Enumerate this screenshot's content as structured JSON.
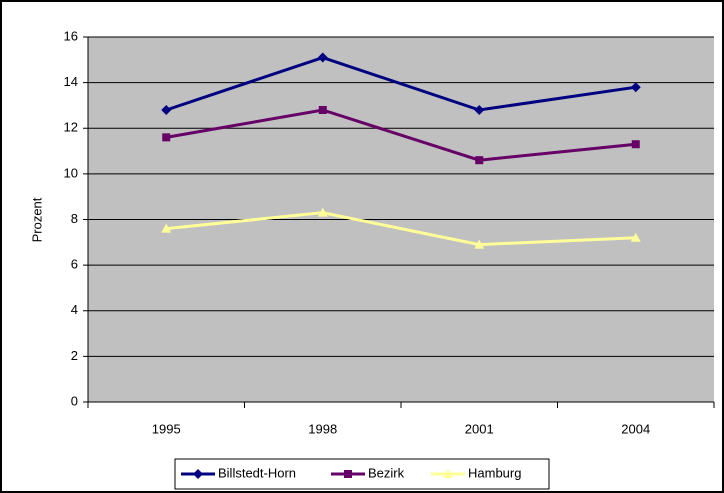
{
  "chart_data": {
    "type": "line",
    "ylabel": "Prozent",
    "categories": [
      "1995",
      "1998",
      "2001",
      "2004"
    ],
    "series": [
      {
        "name": "Billstedt-Horn",
        "color": "#000080",
        "marker": "diamond",
        "values": [
          12.8,
          15.1,
          12.8,
          13.8
        ]
      },
      {
        "name": "Bezirk",
        "color": "#660066",
        "marker": "square",
        "values": [
          11.6,
          12.8,
          10.6,
          11.3
        ]
      },
      {
        "name": "Hamburg",
        "color": "#ffff99",
        "marker": "triangle",
        "values": [
          7.6,
          8.3,
          6.9,
          7.2
        ]
      }
    ],
    "ylim": [
      0,
      16
    ],
    "yticks": [
      0,
      2,
      4,
      6,
      8,
      10,
      12,
      14,
      16
    ],
    "grid": true,
    "plot_background": "#c0c0c0",
    "legend": "bottom"
  }
}
